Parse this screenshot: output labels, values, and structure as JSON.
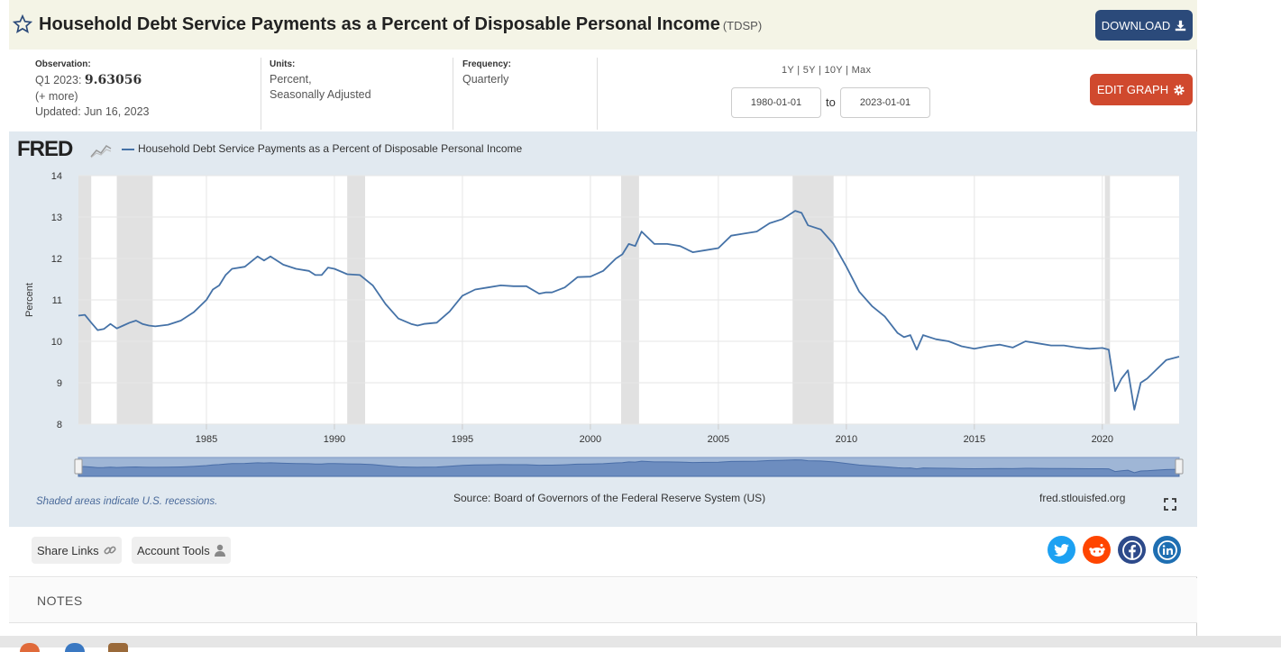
{
  "header": {
    "title": "Household Debt Service Payments as a Percent of Disposable Personal Income",
    "series_code": "(TDSP)",
    "download_label": "DOWNLOAD"
  },
  "observation": {
    "label": "Observation:",
    "date": "Q1 2023:",
    "value": "9.63056",
    "more": "(+ more)",
    "updated": "Updated: Jun 16, 2023"
  },
  "units": {
    "label": "Units:",
    "line1": "Percent,",
    "line2": "Seasonally Adjusted"
  },
  "frequency": {
    "label": "Frequency:",
    "value": "Quarterly"
  },
  "ranges": "1Y | 5Y | 10Y | Max",
  "date_range": {
    "start": "1980-01-01",
    "to_label": "to",
    "end": "2023-01-01"
  },
  "edit_label": "EDIT GRAPH",
  "chart_header": {
    "logo": "FRED",
    "legend": "Household Debt Service Payments as a Percent of Disposable Personal Income"
  },
  "footer": {
    "shaded_note": "Shaded areas indicate U.S. recessions.",
    "source": "Source: Board of Governors of the Federal Reserve System (US)",
    "site": "fred.stlouisfed.org"
  },
  "toolbar": {
    "share_label": "Share Links",
    "account_label": "Account Tools"
  },
  "notes_label": "NOTES",
  "colors": {
    "line": "#4572a7",
    "recession": "#e1e1e1",
    "header_bg": "#f4f4e6",
    "download": "#2b4a7a",
    "edit": "#d0492e"
  },
  "chart_data": {
    "type": "line",
    "title": "Household Debt Service Payments as a Percent of Disposable Personal Income",
    "xlabel": "",
    "ylabel": "Percent",
    "xlim": [
      1980.0,
      2023.0
    ],
    "ylim": [
      8,
      14
    ],
    "yticks": [
      8,
      9,
      10,
      11,
      12,
      13,
      14
    ],
    "xticks": [
      1985,
      1990,
      1995,
      2000,
      2005,
      2010,
      2015,
      2020
    ],
    "recessions": [
      [
        1980.0,
        1980.5
      ],
      [
        1981.5,
        1982.9
      ],
      [
        1990.5,
        1991.2
      ],
      [
        2001.2,
        2001.9
      ],
      [
        2007.9,
        2009.5
      ],
      [
        2020.1,
        2020.3
      ]
    ],
    "series": [
      {
        "name": "Household Debt Service Payments as a Percent of Disposable Personal Income",
        "x": [
          1980.0,
          1980.25,
          1980.5,
          1980.75,
          1981.0,
          1981.25,
          1981.5,
          1981.75,
          1982.0,
          1982.25,
          1982.5,
          1982.75,
          1983.0,
          1983.5,
          1984.0,
          1984.5,
          1985.0,
          1985.25,
          1985.5,
          1985.75,
          1986.0,
          1986.5,
          1987.0,
          1987.25,
          1987.5,
          1988.0,
          1988.5,
          1989.0,
          1989.25,
          1989.5,
          1989.75,
          1990.0,
          1990.5,
          1991.0,
          1991.5,
          1992.0,
          1992.5,
          1993.0,
          1993.25,
          1993.5,
          1994.0,
          1994.5,
          1995.0,
          1995.5,
          1996.0,
          1996.5,
          1997.0,
          1997.5,
          1998.0,
          1998.25,
          1998.5,
          1999.0,
          1999.5,
          2000.0,
          2000.5,
          2001.0,
          2001.25,
          2001.5,
          2001.75,
          2002.0,
          2002.5,
          2003.0,
          2003.5,
          2004.0,
          2004.5,
          2005.0,
          2005.5,
          2006.0,
          2006.5,
          2007.0,
          2007.5,
          2007.75,
          2008.0,
          2008.25,
          2008.5,
          2009.0,
          2009.5,
          2010.0,
          2010.5,
          2011.0,
          2011.5,
          2012.0,
          2012.25,
          2012.5,
          2012.75,
          2013.0,
          2013.5,
          2014.0,
          2014.5,
          2015.0,
          2015.5,
          2016.0,
          2016.5,
          2017.0,
          2017.5,
          2018.0,
          2018.5,
          2019.0,
          2019.5,
          2020.0,
          2020.25,
          2020.5,
          2020.75,
          2021.0,
          2021.25,
          2021.5,
          2021.75,
          2022.0,
          2022.5,
          2023.0
        ],
        "values": [
          10.62,
          10.64,
          10.45,
          10.27,
          10.3,
          10.42,
          10.31,
          10.38,
          10.45,
          10.5,
          10.42,
          10.38,
          10.36,
          10.4,
          10.5,
          10.7,
          11.0,
          11.25,
          11.35,
          11.6,
          11.75,
          11.8,
          12.05,
          11.95,
          12.05,
          11.85,
          11.75,
          11.7,
          11.6,
          11.6,
          11.78,
          11.75,
          11.62,
          11.6,
          11.35,
          10.9,
          10.55,
          10.42,
          10.38,
          10.42,
          10.45,
          10.72,
          11.1,
          11.25,
          11.3,
          11.35,
          11.33,
          11.33,
          11.15,
          11.18,
          11.18,
          11.3,
          11.55,
          11.56,
          11.7,
          12.0,
          12.1,
          12.35,
          12.3,
          12.65,
          12.35,
          12.35,
          12.3,
          12.15,
          12.2,
          12.25,
          12.55,
          12.6,
          12.65,
          12.85,
          12.95,
          13.05,
          13.15,
          13.1,
          12.8,
          12.7,
          12.35,
          11.8,
          11.2,
          10.85,
          10.6,
          10.2,
          10.1,
          10.15,
          9.8,
          10.15,
          10.05,
          10.0,
          9.88,
          9.82,
          9.88,
          9.92,
          9.85,
          10.0,
          9.95,
          9.9,
          9.9,
          9.85,
          9.82,
          9.84,
          9.8,
          8.8,
          9.1,
          9.3,
          8.35,
          9.0,
          9.1,
          9.25,
          9.55,
          9.63
        ]
      }
    ]
  }
}
